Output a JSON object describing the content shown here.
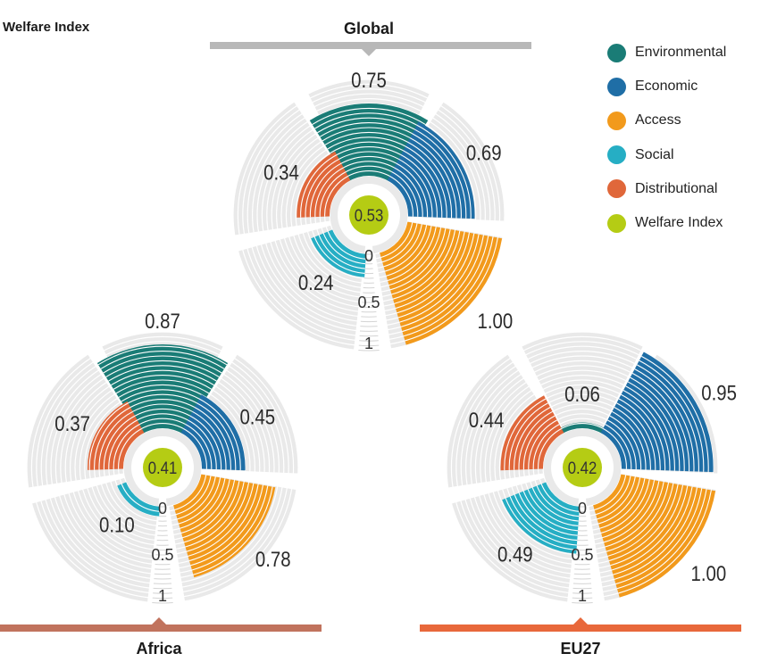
{
  "title": "Welfare Index",
  "legend": [
    {
      "label": "Environmental",
      "color": "#1a7c76",
      "icon": "circle"
    },
    {
      "label": "Economic",
      "color": "#1f6ea6",
      "icon": "circle"
    },
    {
      "label": "Access",
      "color": "#f29a1c",
      "icon": "circle"
    },
    {
      "label": "Social",
      "color": "#26aec4",
      "icon": "circle"
    },
    {
      "label": "Distributional",
      "color": "#e0673a",
      "icon": "circle"
    },
    {
      "label": "Welfare Index",
      "color": "#b5cc14",
      "icon": "circle"
    }
  ],
  "colors": {
    "grid": "#e9e9e9",
    "grid_line": "#ffffff",
    "Global": "#b8b8b8",
    "Africa": "#c1735d",
    "EU27": "#e8683b"
  },
  "chart_data": [
    {
      "type": "radial-bar",
      "title": "Global",
      "categories": [
        "Environmental",
        "Economic",
        "Access",
        "Social",
        "Distributional"
      ],
      "values": [
        0.75,
        0.69,
        1.0,
        0.24,
        0.34
      ],
      "value_labels": [
        "0.75",
        "0.69",
        "1.00",
        "0.24",
        "0.34"
      ],
      "welfare_index": "0.53",
      "scale_labels": [
        "0",
        "0.5",
        "1"
      ],
      "range": [
        0,
        1
      ]
    },
    {
      "type": "radial-bar",
      "title": "Africa",
      "categories": [
        "Environmental",
        "Economic",
        "Access",
        "Social",
        "Distributional"
      ],
      "values": [
        0.87,
        0.45,
        0.78,
        0.1,
        0.37
      ],
      "value_labels": [
        "0.87",
        "0.45",
        "0.78",
        "0.10",
        "0.37"
      ],
      "welfare_index": "0.41",
      "scale_labels": [
        "0",
        "0.5",
        "1"
      ],
      "range": [
        0,
        1
      ]
    },
    {
      "type": "radial-bar",
      "title": "EU27",
      "categories": [
        "Environmental",
        "Economic",
        "Access",
        "Social",
        "Distributional"
      ],
      "values": [
        0.06,
        0.95,
        1.0,
        0.49,
        0.44
      ],
      "value_labels": [
        "0.06",
        "0.95",
        "1.00",
        "0.49",
        "0.44"
      ],
      "welfare_index": "0.42",
      "scale_labels": [
        "0",
        "0.5",
        "1"
      ],
      "range": [
        0,
        1
      ]
    }
  ]
}
